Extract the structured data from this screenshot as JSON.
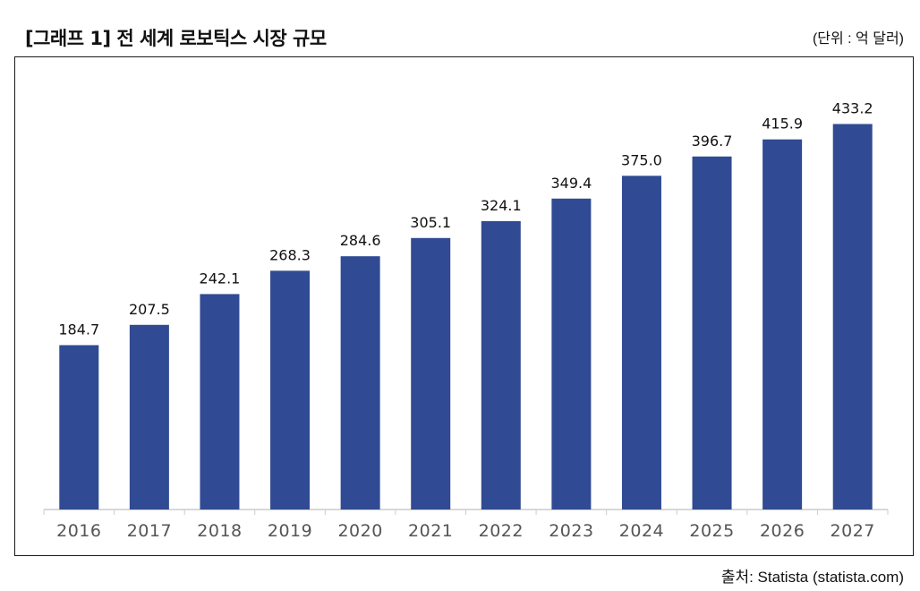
{
  "header": {
    "title": "[그래프 1] 전 세계 로보틱스 시장 규모",
    "unit": "(단위 : 억 달러)"
  },
  "footer": {
    "source": "출처: Statista (statista.com)"
  },
  "colors": {
    "bar": "#304B93",
    "axis": "#CCCCCC",
    "tick_text": "#555555"
  },
  "chart_data": {
    "type": "bar",
    "title": "[그래프 1] 전 세계 로보틱스 시장 규모",
    "categories": [
      "2016",
      "2017",
      "2018",
      "2019",
      "2020",
      "2021",
      "2022",
      "2023",
      "2024",
      "2025",
      "2026",
      "2027"
    ],
    "values": [
      184.7,
      207.5,
      242.1,
      268.3,
      284.6,
      305.1,
      324.1,
      349.4,
      375.0,
      396.7,
      415.9,
      433.2
    ],
    "labels": [
      "184.7",
      "207.5",
      "242.1",
      "268.3",
      "284.6",
      "305.1",
      "324.1",
      "349.4",
      "375.0",
      "396.7",
      "415.9",
      "433.2"
    ],
    "xlabel": "",
    "ylabel": "",
    "ylim": [
      0,
      483
    ],
    "grid": false,
    "legend": "none"
  }
}
